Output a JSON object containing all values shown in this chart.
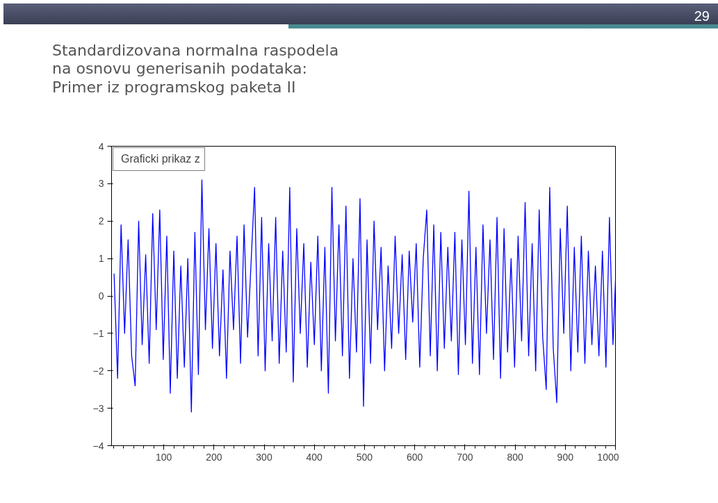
{
  "chart_data": {
    "type": "line",
    "title": "Standardizovana normalna raspodela\nna osnovu generisanih podataka:\nPrimer iz programskog paketa II",
    "annotations": [
      "29"
    ],
    "x": [
      1,
      8,
      15,
      22,
      29,
      36,
      43,
      50,
      57,
      64,
      71,
      78,
      85,
      92,
      99,
      106,
      113,
      120,
      127,
      134,
      141,
      148,
      155,
      162,
      169,
      176,
      183,
      190,
      197,
      204,
      211,
      218,
      225,
      232,
      239,
      246,
      253,
      260,
      267,
      274,
      281,
      288,
      295,
      302,
      309,
      316,
      323,
      330,
      337,
      344,
      351,
      358,
      365,
      372,
      379,
      386,
      393,
      400,
      407,
      414,
      421,
      428,
      435,
      442,
      449,
      456,
      463,
      470,
      477,
      484,
      491,
      498,
      505,
      512,
      519,
      526,
      533,
      540,
      547,
      554,
      561,
      568,
      575,
      582,
      589,
      596,
      603,
      610,
      617,
      624,
      631,
      638,
      645,
      652,
      659,
      666,
      673,
      680,
      687,
      694,
      701,
      708,
      715,
      722,
      729,
      736,
      743,
      750,
      757,
      764,
      771,
      778,
      785,
      792,
      799,
      806,
      813,
      820,
      827,
      834,
      841,
      848,
      855,
      862,
      869,
      876,
      883,
      890,
      897,
      904,
      911,
      918,
      925,
      932,
      939,
      946,
      953,
      960,
      967,
      974,
      981,
      988,
      995,
      1000
    ],
    "series": [
      {
        "name": "Graficki prikaz z",
        "color": "#0000ff",
        "values": [
          0.6,
          -2.2,
          1.9,
          -1.0,
          1.5,
          -1.6,
          -2.4,
          2.0,
          -1.3,
          1.1,
          -1.8,
          2.2,
          -0.9,
          2.3,
          -1.7,
          1.6,
          -2.6,
          1.2,
          -2.2,
          0.8,
          -1.9,
          1.0,
          -3.1,
          1.7,
          -2.1,
          3.1,
          -0.9,
          1.8,
          -1.4,
          1.4,
          -1.6,
          0.7,
          -2.2,
          1.2,
          -0.9,
          1.6,
          -1.8,
          1.9,
          -1.1,
          0.9,
          2.9,
          -1.6,
          2.1,
          -2.0,
          1.4,
          -1.2,
          2.1,
          -1.8,
          1.2,
          -1.5,
          2.9,
          -2.3,
          1.8,
          -1.0,
          1.4,
          -1.9,
          0.9,
          -1.3,
          1.6,
          -2.0,
          1.3,
          -2.6,
          2.9,
          -1.2,
          1.9,
          -1.6,
          2.4,
          -2.2,
          1.0,
          -1.5,
          2.6,
          -2.95,
          1.5,
          -1.8,
          2.0,
          -0.9,
          1.3,
          -2.0,
          0.8,
          -1.4,
          1.6,
          -1.0,
          1.1,
          -1.7,
          1.2,
          -0.7,
          1.4,
          -1.9,
          1.0,
          2.3,
          -1.6,
          1.9,
          -2.0,
          1.7,
          -1.4,
          1.3,
          -1.2,
          1.7,
          -2.1,
          1.5,
          -1.3,
          2.8,
          -1.8,
          1.3,
          -2.1,
          1.9,
          -1.0,
          1.5,
          -1.7,
          2.1,
          -2.2,
          1.8,
          -1.5,
          1.0,
          -1.9,
          1.6,
          -1.2,
          2.5,
          -1.6,
          1.4,
          -2.0,
          2.3,
          -1.1,
          -2.5,
          2.9,
          -1.4,
          -2.85,
          1.8,
          -1.0,
          2.4,
          -2.0,
          1.3,
          -1.5,
          1.6,
          -1.8,
          1.2,
          -1.3,
          0.8,
          -1.6,
          1.2,
          -1.9,
          2.1,
          -1.3,
          0.4
        ]
      }
    ],
    "xlim": [
      -4,
      1000
    ],
    "ylim": [
      -4,
      4
    ],
    "xticks": [
      100,
      200,
      300,
      400,
      500,
      600,
      700,
      800,
      900,
      1000
    ],
    "yticks": [
      -4,
      -3,
      -2,
      -1,
      0,
      1,
      2,
      3,
      4
    ],
    "grid": false,
    "legend": "top left",
    "line_style": "solid"
  }
}
